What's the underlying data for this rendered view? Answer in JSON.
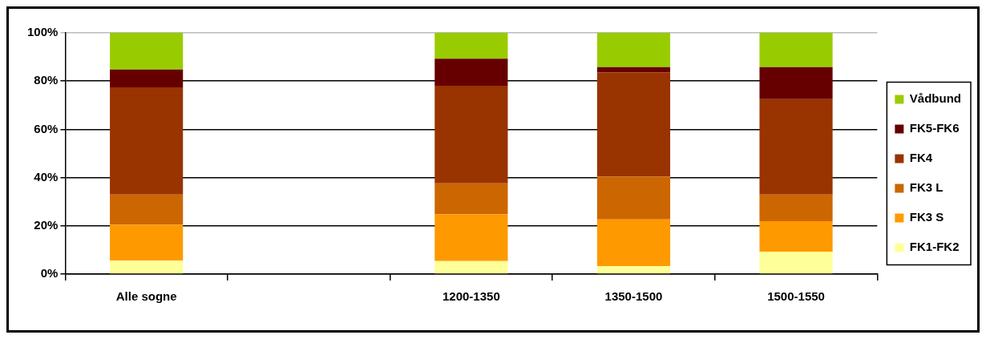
{
  "chart_data": {
    "type": "bar",
    "stacked": true,
    "categories": [
      "Alle sogne",
      null,
      "1200-1350",
      "1350-1500",
      "1500-1550"
    ],
    "series": [
      {
        "name": "FK1-FK2",
        "color": "#ffff99",
        "values": [
          5.6,
          null,
          5.4,
          3.3,
          9.3
        ]
      },
      {
        "name": "FK3 S",
        "color": "#ff9900",
        "values": [
          14.8,
          null,
          19.4,
          19.4,
          12.6
        ]
      },
      {
        "name": "FK3 L",
        "color": "#cc6600",
        "values": [
          12.6,
          null,
          12.8,
          17.7,
          11.1
        ]
      },
      {
        "name": "FK4",
        "color": "#993300",
        "values": [
          44.4,
          null,
          40.5,
          43.2,
          39.5
        ]
      },
      {
        "name": "FK5-FK6",
        "color": "#660000",
        "values": [
          7.4,
          null,
          11.2,
          2.2,
          13.3
        ]
      },
      {
        "name": "Vådbund",
        "color": "#99cc00",
        "values": [
          15.2,
          null,
          10.7,
          14.2,
          14.2
        ]
      }
    ],
    "ylim": [
      0,
      100
    ],
    "yticks": [
      {
        "value": 0,
        "label": "0%"
      },
      {
        "value": 20,
        "label": "20%"
      },
      {
        "value": 40,
        "label": "40%"
      },
      {
        "value": 60,
        "label": "60%"
      },
      {
        "value": 80,
        "label": "80%"
      },
      {
        "value": 100,
        "label": "100%"
      }
    ],
    "grid": "y",
    "legend": "right"
  }
}
